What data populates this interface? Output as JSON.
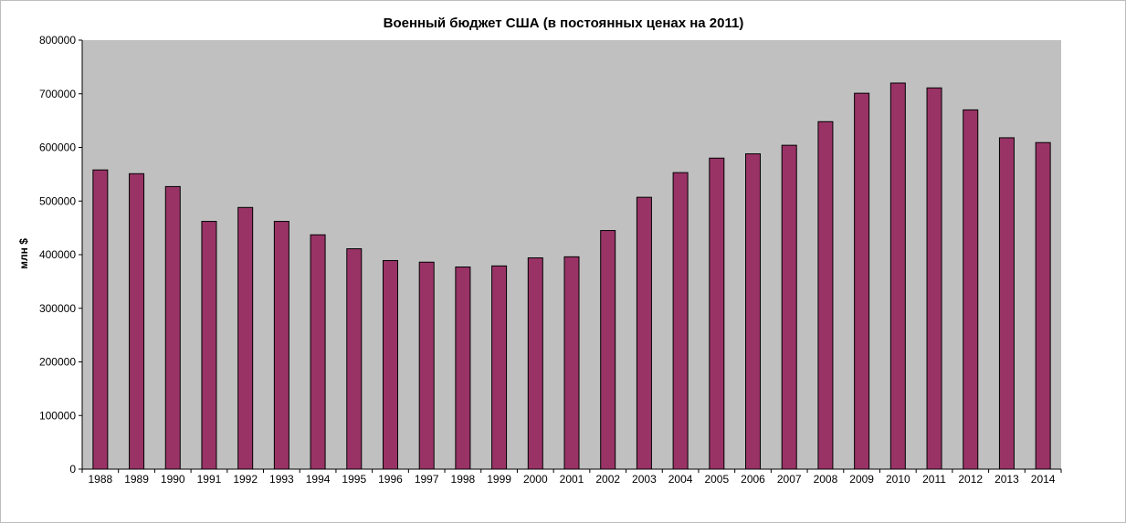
{
  "chart_data": {
    "type": "bar",
    "title": "Военный бюджет США (в постоянных ценах на 2011)",
    "xlabel": "",
    "ylabel": "млн $",
    "ylim": [
      0,
      800000
    ],
    "yticks": [
      0,
      100000,
      200000,
      300000,
      400000,
      500000,
      600000,
      700000,
      800000
    ],
    "categories": [
      "1988",
      "1989",
      "1990",
      "1991",
      "1992",
      "1993",
      "1994",
      "1995",
      "1996",
      "1997",
      "1998",
      "1999",
      "2000",
      "2001",
      "2002",
      "2003",
      "2004",
      "2005",
      "2006",
      "2007",
      "2008",
      "2009",
      "2010",
      "2011",
      "2012",
      "2013",
      "2014"
    ],
    "values": [
      558000,
      551000,
      527000,
      462000,
      488000,
      462000,
      437000,
      411000,
      389000,
      386000,
      377000,
      379000,
      394000,
      396000,
      445000,
      507000,
      553000,
      580000,
      588000,
      604000,
      648000,
      701000,
      720000,
      711000,
      670000,
      618000,
      609000
    ],
    "grid": false,
    "legend": "none",
    "colors": {
      "bar": "#993366",
      "bar_border": "#000000",
      "plot_background": "#c0c0c0",
      "axis": "#000000"
    }
  }
}
